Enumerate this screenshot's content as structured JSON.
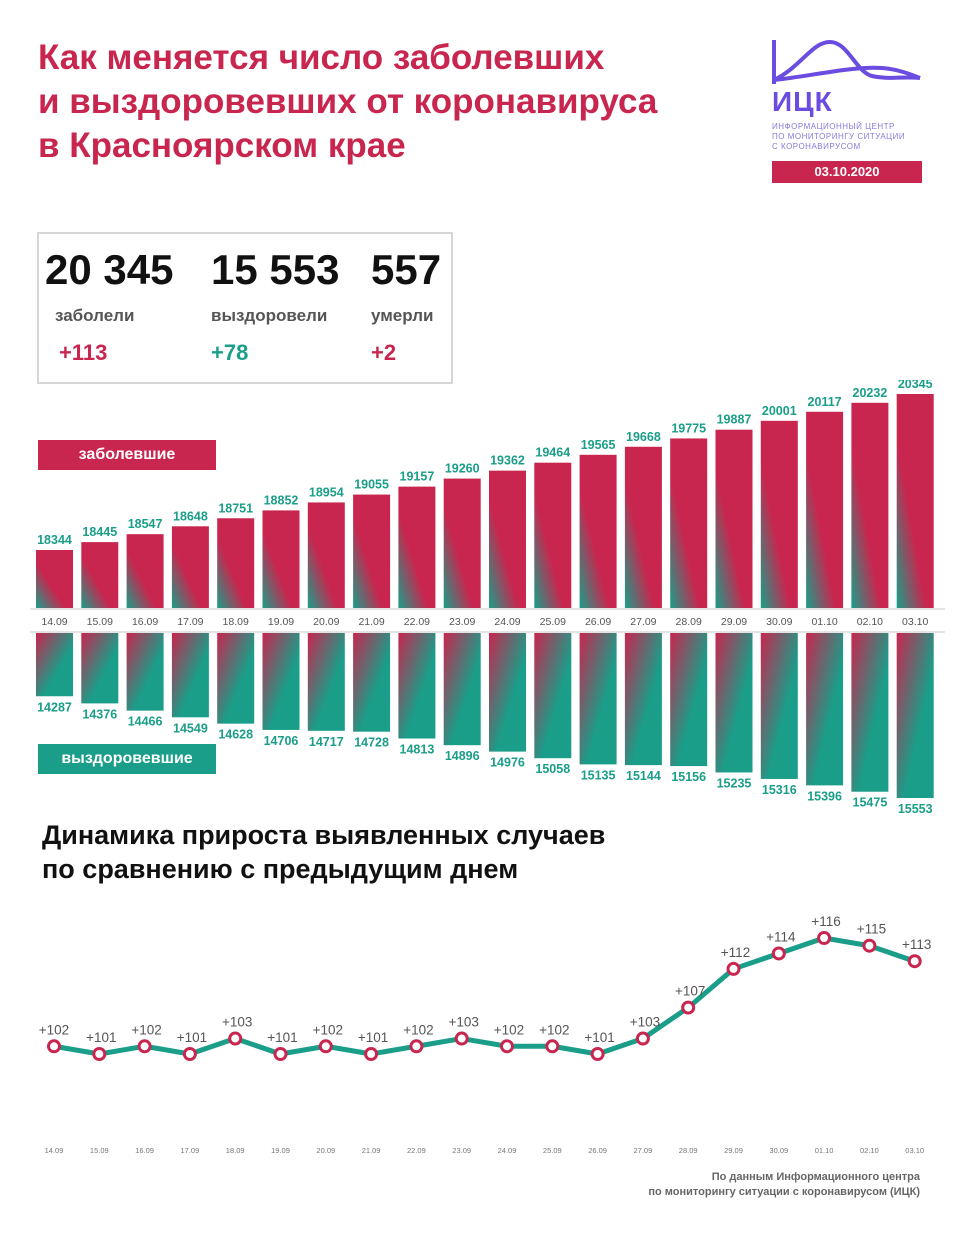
{
  "header": {
    "title_lines": [
      "Как меняется число заболевших",
      "и выздоровевших от коронавируса",
      "в Красноярском крае"
    ],
    "logo_name": "ИЦК",
    "logo_sub_lines": [
      "Информационный центр",
      "по мониторингу ситуации",
      "с коронавирусом"
    ],
    "date": "03.10.2020"
  },
  "stats": {
    "cases": {
      "value": "20 345",
      "label": "заболели",
      "delta": "+113"
    },
    "recovered": {
      "value": "15 553",
      "label": "выздоровели",
      "delta": "+78"
    },
    "deaths": {
      "value": "557",
      "label": "умерли",
      "delta": "+2"
    }
  },
  "legend": {
    "cases_label": "заболевшие",
    "recovered_label": "выздоровевшие"
  },
  "colors": {
    "accent_red": "#c8264f",
    "accent_green": "#1a9e89",
    "logo_purple": "#6a4ce0"
  },
  "chart_data": [
    {
      "type": "bar",
      "categories": [
        "14.09",
        "15.09",
        "16.09",
        "17.09",
        "18.09",
        "19.09",
        "20.09",
        "21.09",
        "22.09",
        "23.09",
        "24.09",
        "25.09",
        "26.09",
        "27.09",
        "28.09",
        "29.09",
        "30.09",
        "01.10",
        "02.10",
        "03.10"
      ],
      "series": [
        {
          "name": "заболевшие",
          "values": [
            18344,
            18445,
            18547,
            18648,
            18751,
            18852,
            18954,
            19055,
            19157,
            19260,
            19362,
            19464,
            19565,
            19668,
            19775,
            19887,
            20001,
            20117,
            20232,
            20345
          ]
        },
        {
          "name": "выздоровевшие",
          "values": [
            14287,
            14376,
            14466,
            14549,
            14628,
            14706,
            14717,
            14728,
            14813,
            14896,
            14976,
            15058,
            15135,
            15144,
            15156,
            15235,
            15316,
            15396,
            15475,
            15553
          ]
        }
      ],
      "legend": "top-left"
    },
    {
      "type": "line",
      "title": "Динамика прироста выявленных случаев по сравнению с предыдущим днем",
      "title_lines": [
        "Динамика прироста выявленных случаев",
        "по сравнению с предыдущим днем"
      ],
      "categories": [
        "14.09",
        "15.09",
        "16.09",
        "17.09",
        "18.09",
        "19.09",
        "20.09",
        "21.09",
        "22.09",
        "23.09",
        "24.09",
        "25.09",
        "26.09",
        "27.09",
        "28.09",
        "29.09",
        "30.09",
        "01.10",
        "02.10",
        "03.10"
      ],
      "values": [
        102,
        101,
        102,
        101,
        103,
        101,
        102,
        101,
        102,
        103,
        102,
        102,
        101,
        103,
        107,
        112,
        114,
        116,
        115,
        113
      ],
      "labels": [
        "+102",
        "+101",
        "+102",
        "+101",
        "+103",
        "+101",
        "+102",
        "+101",
        "+102",
        "+103",
        "+102",
        "+102",
        "+101",
        "+103",
        "+107",
        "+112",
        "+114",
        "+116",
        "+115",
        "+113"
      ]
    }
  ],
  "footer_lines": [
    "По данным Информационного центра",
    "по мониторингу ситуации с коронавирусом (ИЦК)"
  ]
}
